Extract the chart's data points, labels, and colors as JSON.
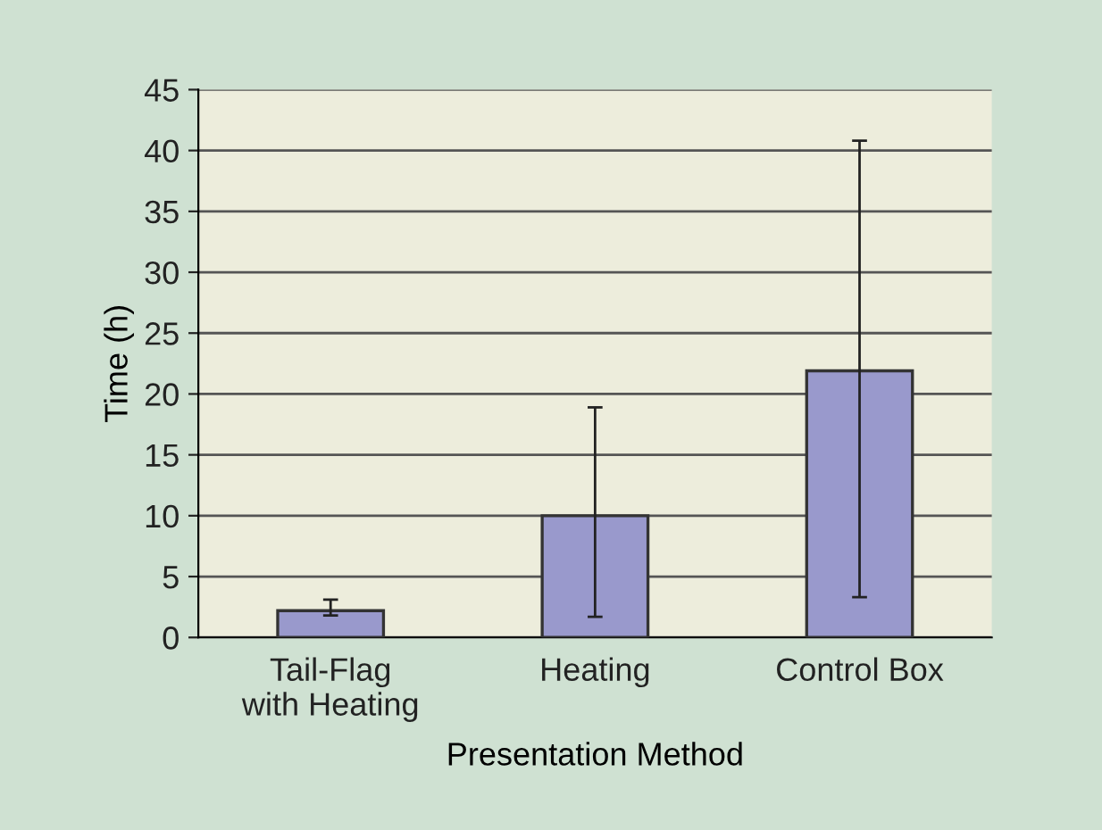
{
  "chart_data": {
    "type": "bar",
    "xlabel": "Presentation Method",
    "ylabel": "Time (h)",
    "categories": [
      "Tail-Flag\nwith Heating",
      "Heating",
      "Control Box"
    ],
    "values": [
      2.2,
      10,
      21.9
    ],
    "errors": [
      [
        1.8,
        3.1
      ],
      [
        1.7,
        18.9
      ],
      [
        3.3,
        40.8
      ]
    ],
    "color": "#9999cc",
    "ylim": [
      0,
      45
    ],
    "yticks": [
      0,
      5,
      10,
      15,
      20,
      25,
      30,
      35,
      40,
      45
    ],
    "grid": "y"
  }
}
